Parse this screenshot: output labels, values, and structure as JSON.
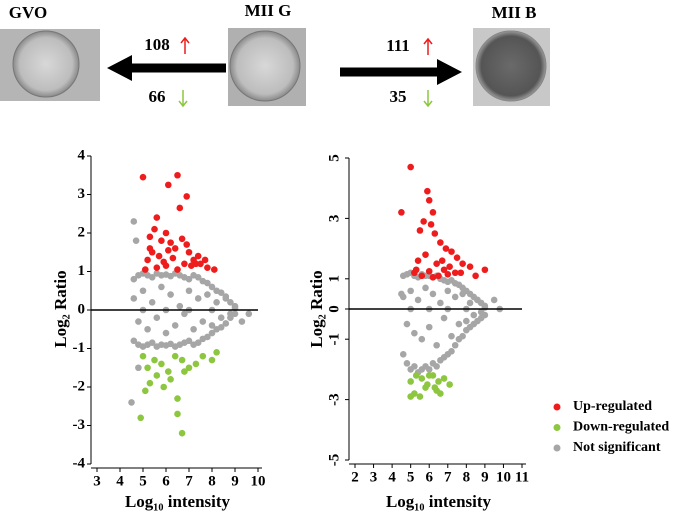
{
  "header": {
    "stages": [
      "GVO",
      "MII G",
      "MII B"
    ],
    "counts": [
      {
        "up": 108,
        "down": 66
      },
      {
        "up": 111,
        "down": 35
      }
    ]
  },
  "chart_data": [
    {
      "type": "scatter",
      "xlabel": "Log₁₀ intensity",
      "ylabel": "Log₂ Ratio",
      "xlim": [
        3,
        10
      ],
      "xticks": [
        3,
        4,
        5,
        6,
        7,
        8,
        9,
        10
      ],
      "ylim": [
        -4,
        4
      ],
      "yticks": [
        -4,
        -3,
        -2,
        -1,
        0,
        1,
        2,
        3,
        4
      ],
      "series": [
        {
          "color": "#ee1c1c",
          "x": [
            5.0,
            6.5,
            6.1,
            6.9,
            6.6,
            5.6,
            5.3,
            5.5,
            5.8,
            6.0,
            6.2,
            6.4,
            6.7,
            7.0,
            7.2,
            7.5,
            7.8,
            8.1,
            5.2,
            5.4,
            5.7,
            5.9,
            6.3,
            6.8,
            7.1,
            7.4,
            5.1,
            5.6,
            6.0,
            6.5,
            7.3,
            7.7,
            5.3,
            6.1,
            6.9
          ],
          "values": [
            3.45,
            3.5,
            3.25,
            2.95,
            2.65,
            2.4,
            1.9,
            2.1,
            1.8,
            2.0,
            1.75,
            1.6,
            1.85,
            1.5,
            1.3,
            1.2,
            1.1,
            1.05,
            1.3,
            1.5,
            1.4,
            1.25,
            1.35,
            1.2,
            1.15,
            1.4,
            1.05,
            1.1,
            1.15,
            1.05,
            1.2,
            1.3,
            1.6,
            1.55,
            1.7
          ]
        },
        {
          "color": "#8dc63f",
          "x": [
            5.0,
            5.2,
            5.5,
            5.8,
            6.1,
            6.4,
            6.7,
            7.0,
            7.3,
            7.6,
            8.0,
            8.2,
            5.3,
            5.6,
            5.9,
            6.2,
            6.5,
            6.8,
            5.1,
            6.5,
            4.9,
            6.7
          ],
          "values": [
            -1.2,
            -1.5,
            -1.3,
            -1.4,
            -1.6,
            -1.2,
            -1.3,
            -1.5,
            -1.4,
            -1.2,
            -1.3,
            -1.1,
            -1.9,
            -1.7,
            -2.0,
            -1.8,
            -2.3,
            -1.6,
            -2.1,
            -2.7,
            -2.8,
            -3.2
          ]
        },
        {
          "color": "#a6a6a6",
          "x": [
            4.6,
            4.8,
            5.0,
            5.2,
            5.4,
            5.6,
            5.8,
            6.0,
            6.2,
            6.4,
            6.6,
            6.8,
            7.0,
            7.2,
            7.4,
            7.6,
            7.8,
            8.0,
            8.2,
            8.4,
            8.6,
            8.8,
            9.0,
            4.6,
            4.8,
            5.0,
            5.2,
            5.4,
            5.6,
            5.8,
            6.0,
            6.2,
            6.4,
            6.6,
            6.8,
            7.0,
            7.2,
            7.4,
            7.6,
            7.8,
            8.0,
            8.2,
            8.4,
            8.6,
            8.8,
            9.0,
            4.6,
            4.8,
            5.0,
            5.2,
            5.4,
            5.6,
            5.8,
            6.0,
            6.2,
            6.4,
            6.6,
            6.8,
            7.0,
            7.2,
            7.4,
            7.6,
            7.8,
            8.0,
            8.2,
            8.4,
            8.6,
            8.8,
            9.0,
            4.6,
            4.7,
            4.5,
            4.8,
            9.3,
            9.6,
            5.0,
            6.0,
            7.0,
            8.0
          ],
          "values": [
            0.8,
            0.9,
            0.95,
            0.9,
            0.85,
            0.95,
            0.9,
            0.92,
            0.88,
            0.95,
            0.9,
            0.85,
            0.8,
            0.9,
            0.85,
            0.75,
            0.7,
            0.6,
            0.5,
            0.45,
            0.35,
            0.2,
            0.1,
            -0.8,
            -0.9,
            -0.95,
            -0.9,
            -0.85,
            -0.95,
            -0.9,
            -0.92,
            -0.88,
            -0.95,
            -0.9,
            -0.85,
            -0.8,
            -0.9,
            -0.85,
            -0.75,
            -0.7,
            -0.6,
            -0.5,
            -0.45,
            -0.35,
            -0.2,
            -0.1,
            0.3,
            -0.3,
            0.5,
            -0.5,
            0.2,
            -0.2,
            0.6,
            -0.6,
            0.4,
            -0.4,
            0.1,
            -0.1,
            0.5,
            -0.5,
            0.3,
            -0.3,
            0.4,
            -0.4,
            0.2,
            -0.2,
            0.3,
            -0.1,
            0.05,
            2.3,
            1.8,
            -2.4,
            -1.5,
            -0.3,
            -0.1,
            0,
            0,
            0,
            0
          ]
        }
      ]
    },
    {
      "type": "scatter",
      "xlabel": "Log₁₀ intensity",
      "ylabel": "Log₂ Ratio",
      "xlim": [
        2,
        11
      ],
      "xticks": [
        2,
        3,
        4,
        5,
        6,
        7,
        8,
        9,
        10,
        11
      ],
      "ylim": [
        -5,
        5
      ],
      "yticks": [
        -5,
        -3,
        -1,
        0,
        1,
        3,
        5
      ],
      "series": [
        {
          "name": "Up-regulated",
          "color": "#ee1c1c",
          "x": [
            5.0,
            4.5,
            5.9,
            6.0,
            6.2,
            5.7,
            5.5,
            6.1,
            6.3,
            6.6,
            6.9,
            7.2,
            7.5,
            7.8,
            8.2,
            9.0,
            5.2,
            5.4,
            5.8,
            6.4,
            6.8,
            7.1,
            7.4,
            5.6,
            6.0,
            6.5,
            7.0,
            7.7,
            8.5,
            5.3,
            6.2,
            6.7
          ],
          "values": [
            4.7,
            3.2,
            3.9,
            3.6,
            3.2,
            2.9,
            2.6,
            2.8,
            2.5,
            2.2,
            2.0,
            1.9,
            1.7,
            1.5,
            1.4,
            1.3,
            1.2,
            1.6,
            1.8,
            1.5,
            1.3,
            1.4,
            1.2,
            1.1,
            1.25,
            1.1,
            1.15,
            1.2,
            1.1,
            1.3,
            1.05,
            1.6
          ]
        },
        {
          "name": "Down-regulated",
          "color": "#8dc63f",
          "x": [
            5.0,
            5.3,
            5.6,
            5.9,
            6.2,
            6.5,
            6.8,
            7.1,
            5.2,
            5.8,
            6.4,
            5.5,
            6.0,
            6.6,
            5.0,
            6.3
          ],
          "values": [
            -2.4,
            -2.2,
            -2.3,
            -2.5,
            -2.2,
            -2.4,
            -2.3,
            -2.5,
            -2.8,
            -2.6,
            -2.7,
            -2.9,
            -2.2,
            -2.8,
            -2.9,
            -2.6
          ]
        },
        {
          "name": "Not significant",
          "color": "#a6a6a6",
          "x": [
            4.6,
            4.8,
            5.0,
            5.2,
            5.4,
            5.6,
            5.8,
            6.0,
            6.2,
            6.4,
            6.6,
            6.8,
            7.0,
            7.2,
            7.4,
            7.6,
            7.8,
            8.0,
            8.2,
            8.4,
            8.6,
            8.8,
            9.0,
            4.6,
            4.8,
            5.0,
            5.2,
            5.4,
            5.6,
            5.8,
            6.0,
            6.2,
            6.4,
            6.6,
            6.8,
            7.0,
            7.2,
            7.4,
            7.6,
            7.8,
            8.0,
            8.2,
            8.4,
            8.6,
            8.8,
            9.0,
            4.6,
            4.8,
            5.0,
            5.2,
            5.4,
            5.6,
            5.8,
            6.0,
            6.2,
            6.4,
            6.6,
            6.8,
            7.0,
            7.2,
            7.4,
            7.6,
            7.8,
            8.0,
            8.2,
            8.4,
            8.6,
            8.8,
            9.0,
            9.5,
            9.8,
            4.5,
            5.0,
            6.0,
            7.0,
            8.0
          ],
          "values": [
            1.1,
            1.15,
            1.2,
            1.1,
            1.05,
            1.15,
            1.1,
            1.1,
            1.05,
            1.1,
            1.0,
            0.95,
            0.9,
            0.95,
            0.85,
            0.8,
            0.7,
            0.6,
            0.5,
            0.4,
            0.3,
            0.2,
            0.1,
            -1.5,
            -1.8,
            -2.0,
            -1.9,
            -2.1,
            -2.0,
            -1.9,
            -2.0,
            -1.8,
            -1.9,
            -1.7,
            -1.6,
            -1.5,
            -1.4,
            -1.2,
            -1.0,
            -0.9,
            -0.7,
            -0.6,
            -0.5,
            -0.4,
            -0.3,
            -0.2,
            0.4,
            -0.5,
            0.6,
            -0.8,
            0.3,
            -1.0,
            0.7,
            -0.6,
            0.5,
            -1.2,
            0.2,
            -0.3,
            0.6,
            -0.9,
            0.4,
            -0.5,
            0.5,
            -0.4,
            0.2,
            -0.2,
            0.3,
            -0.1,
            0.05,
            0.3,
            0,
            0.5,
            0,
            0,
            0,
            0
          ]
        }
      ]
    }
  ]
}
